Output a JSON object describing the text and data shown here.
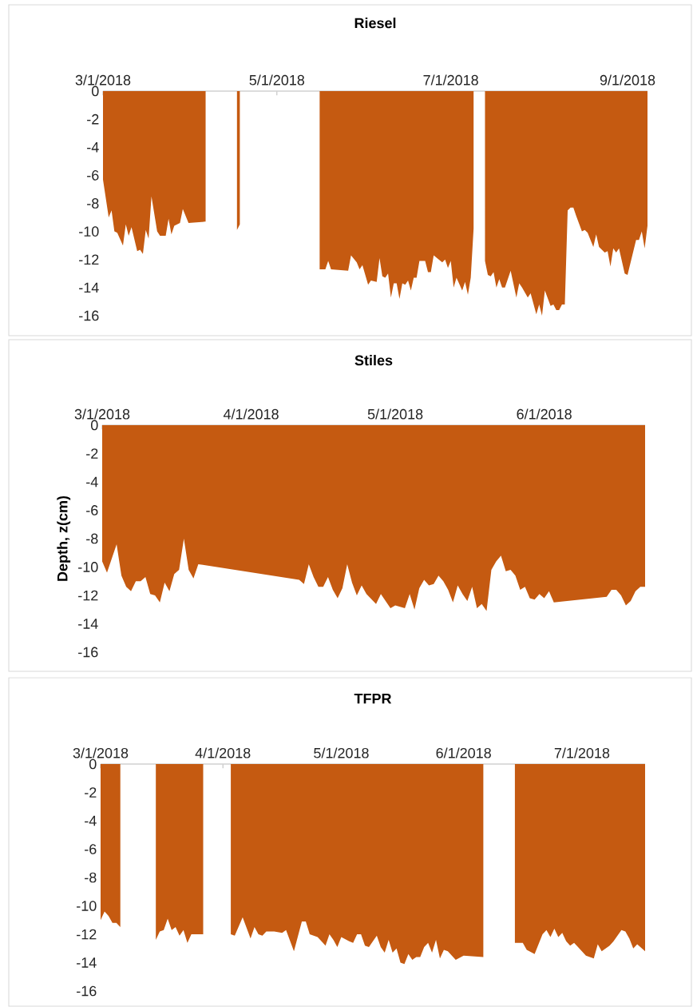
{
  "chart_data": [
    {
      "type": "area",
      "title": "Riesel",
      "color": "#c55a11",
      "x": [
        "2018-03-01",
        "2018-03-03",
        "2018-03-04",
        "2018-03-05",
        "2018-03-06",
        "2018-03-08",
        "2018-03-09",
        "2018-03-10",
        "2018-03-11",
        "2018-03-13",
        "2018-03-14",
        "2018-03-15",
        "2018-03-16",
        "2018-03-17",
        "2018-03-18",
        "2018-03-20",
        "2018-03-21",
        "2018-03-23",
        "2018-03-24",
        "2018-03-25",
        "2018-03-26",
        "2018-03-28",
        "2018-03-29",
        "2018-03-31",
        "2018-04-06",
        "2018-04-12",
        "2018-04-17",
        "2018-04-18",
        "2018-05-01",
        "2018-05-16",
        "2018-05-18",
        "2018-05-19",
        "2018-05-20",
        "2018-05-26",
        "2018-05-27",
        "2018-05-29",
        "2018-05-30",
        "2018-05-31",
        "2018-06-02",
        "2018-06-03",
        "2018-06-05",
        "2018-06-06",
        "2018-06-07",
        "2018-06-08",
        "2018-06-09",
        "2018-06-10",
        "2018-06-11",
        "2018-06-12",
        "2018-06-13",
        "2018-06-14",
        "2018-06-15",
        "2018-06-16",
        "2018-06-17",
        "2018-06-18",
        "2018-06-19",
        "2018-06-20",
        "2018-06-22",
        "2018-06-23",
        "2018-06-24",
        "2018-06-25",
        "2018-06-28",
        "2018-06-29",
        "2018-06-30",
        "2018-07-01",
        "2018-07-02",
        "2018-07-03",
        "2018-07-05",
        "2018-07-06",
        "2018-07-07",
        "2018-07-08",
        "2018-07-09",
        "2018-07-11",
        "2018-07-13",
        "2018-07-14",
        "2018-07-15",
        "2018-07-16",
        "2018-07-17",
        "2018-07-18",
        "2018-07-19",
        "2018-07-20",
        "2018-07-22",
        "2018-07-24",
        "2018-07-25",
        "2018-07-26",
        "2018-07-28",
        "2018-07-29",
        "2018-07-31",
        "2018-08-01",
        "2018-08-02",
        "2018-08-03",
        "2018-08-05",
        "2018-08-06",
        "2018-08-07",
        "2018-08-08",
        "2018-08-09",
        "2018-08-10",
        "2018-08-11",
        "2018-08-12",
        "2018-08-13",
        "2018-08-14",
        "2018-08-16",
        "2018-08-17",
        "2018-08-18",
        "2018-08-20",
        "2018-08-21",
        "2018-08-22",
        "2018-08-24",
        "2018-08-25",
        "2018-08-26",
        "2018-08-27",
        "2018-08-28",
        "2018-08-29",
        "2018-08-31",
        "2018-09-01",
        "2018-09-04",
        "2018-09-05",
        "2018-09-06",
        "2018-09-07",
        "2018-09-08"
      ],
      "values": [
        -6.3,
        -9.0,
        -8.5,
        -10.0,
        -10.1,
        -11.0,
        -9.5,
        -10.3,
        -9.7,
        -11.4,
        -11.3,
        -11.6,
        -9.9,
        -10.5,
        -7.5,
        -10.0,
        -10.3,
        -10.3,
        -9.1,
        -10.2,
        -9.6,
        -9.4,
        -8.4,
        -9.4,
        -9.3,
        null,
        -9.9,
        -9.5,
        null,
        -12.7,
        -12.7,
        -12.1,
        -12.7,
        -12.8,
        -11.7,
        -12.2,
        -12.7,
        -12.4,
        -13.8,
        -13.5,
        -13.6,
        -11.9,
        -13.2,
        -13.3,
        -13.0,
        -14.7,
        -13.7,
        -13.7,
        -14.8,
        -13.7,
        -13.8,
        -13.5,
        -14.2,
        -13.3,
        -13.3,
        -12.1,
        -12.1,
        -12.9,
        -12.9,
        -11.7,
        -12.2,
        -12.0,
        -12.6,
        -12.1,
        -14.0,
        -13.3,
        -14.2,
        -13.6,
        -14.5,
        -13.3,
        -9.8,
        null,
        -12.1,
        -13.1,
        -13.2,
        -12.9,
        -14.0,
        -13.4,
        -14.0,
        -14.0,
        -12.8,
        -14.7,
        -13.7,
        -14.0,
        -14.7,
        -14.4,
        -15.9,
        -15.2,
        -16.0,
        -14.2,
        -15.3,
        -15.2,
        -15.6,
        -15.6,
        -15.2,
        -15.2,
        -8.5,
        -8.3,
        -8.3,
        -8.9,
        -10.0,
        -9.9,
        -10.1,
        -11.1,
        -10.2,
        -11.1,
        -11.5,
        -11.4,
        -12.5,
        -11.2,
        -11.5,
        -11.2,
        -13.0,
        -13.1,
        -10.6,
        -10.6,
        -10.0,
        -11.2,
        -9.6
      ],
      "xlim": [
        "2018-03-01",
        "2018-09-08"
      ],
      "ylim": [
        -16,
        0
      ],
      "xticks": [
        {
          "value": "2018-03-01",
          "label": "3/1/2018"
        },
        {
          "value": "2018-05-01",
          "label": "5/1/2018"
        },
        {
          "value": "2018-07-01",
          "label": "7/1/2018"
        },
        {
          "value": "2018-09-01",
          "label": "9/1/2018"
        }
      ],
      "yticks": [
        0,
        -2,
        -4,
        -6,
        -8,
        -10,
        -12,
        -14,
        -16
      ]
    },
    {
      "type": "area",
      "title": "Stiles",
      "ylabel": "Depth, z(cm)",
      "color": "#c55a11",
      "x": [
        "2018-03-01",
        "2018-03-02",
        "2018-03-04",
        "2018-03-05",
        "2018-03-06",
        "2018-03-07",
        "2018-03-08",
        "2018-03-09",
        "2018-03-10",
        "2018-03-11",
        "2018-03-12",
        "2018-03-13",
        "2018-03-14",
        "2018-03-15",
        "2018-03-16",
        "2018-03-17",
        "2018-03-18",
        "2018-03-19",
        "2018-03-20",
        "2018-03-21",
        "2018-04-11",
        "2018-04-12",
        "2018-04-13",
        "2018-04-14",
        "2018-04-15",
        "2018-04-16",
        "2018-04-17",
        "2018-04-18",
        "2018-04-19",
        "2018-04-20",
        "2018-04-21",
        "2018-04-22",
        "2018-04-23",
        "2018-04-24",
        "2018-04-25",
        "2018-04-27",
        "2018-04-28",
        "2018-04-30",
        "2018-05-01",
        "2018-05-03",
        "2018-05-04",
        "2018-05-05",
        "2018-05-06",
        "2018-05-07",
        "2018-05-08",
        "2018-05-09",
        "2018-05-10",
        "2018-05-11",
        "2018-05-12",
        "2018-05-13",
        "2018-05-14",
        "2018-05-15",
        "2018-05-16",
        "2018-05-17",
        "2018-05-18",
        "2018-05-19",
        "2018-05-20",
        "2018-05-21",
        "2018-05-22",
        "2018-05-23",
        "2018-05-24",
        "2018-05-25",
        "2018-05-26",
        "2018-05-27",
        "2018-05-28",
        "2018-05-29",
        "2018-05-30",
        "2018-05-31",
        "2018-06-01",
        "2018-06-02",
        "2018-06-03",
        "2018-06-14",
        "2018-06-15",
        "2018-06-16",
        "2018-06-17",
        "2018-06-18",
        "2018-06-19",
        "2018-06-20",
        "2018-06-21",
        "2018-06-22"
      ],
      "values": [
        -9.6,
        -10.4,
        -8.4,
        -10.6,
        -11.4,
        -11.7,
        -11.0,
        -11.0,
        -10.7,
        -11.9,
        -12.0,
        -12.5,
        -11.1,
        -11.7,
        -10.5,
        -10.2,
        -8.0,
        -10.2,
        -10.8,
        -9.8,
        -10.9,
        -11.2,
        -9.8,
        -10.7,
        -11.4,
        -11.4,
        -10.7,
        -11.6,
        -12.2,
        -11.5,
        -9.8,
        -11.1,
        -12.0,
        -11.3,
        -11.9,
        -12.6,
        -11.9,
        -12.9,
        -12.7,
        -12.9,
        -11.9,
        -13.0,
        -11.5,
        -10.9,
        -11.3,
        -11.2,
        -10.6,
        -11.0,
        -11.6,
        -12.5,
        -11.3,
        -11.9,
        -12.4,
        -11.4,
        -12.9,
        -12.6,
        -13.1,
        -10.2,
        -9.6,
        -9.2,
        -10.3,
        -10.2,
        -10.6,
        -11.6,
        -11.4,
        -12.2,
        -12.3,
        -11.9,
        -12.2,
        -11.7,
        -12.5,
        -12.1,
        -11.6,
        -11.6,
        -12.0,
        -12.7,
        -12.4,
        -11.7,
        -11.4,
        -11.4
      ],
      "xlim": [
        "2018-03-01",
        "2018-06-22"
      ],
      "ylim": [
        -16,
        0
      ],
      "xticks": [
        {
          "value": "2018-03-01",
          "label": "3/1/2018"
        },
        {
          "value": "2018-04-01",
          "label": "4/1/2018"
        },
        {
          "value": "2018-05-01",
          "label": "5/1/2018"
        },
        {
          "value": "2018-06-01",
          "label": "6/1/2018"
        }
      ],
      "yticks": [
        0,
        -2,
        -4,
        -6,
        -8,
        -10,
        -12,
        -14,
        -16
      ]
    },
    {
      "type": "area",
      "title": "TFPR",
      "color": "#c55a11",
      "x": [
        "2018-03-01",
        "2018-03-02",
        "2018-03-03",
        "2018-03-04",
        "2018-03-05",
        "2018-03-06",
        "2018-03-10",
        "2018-03-15",
        "2018-03-16",
        "2018-03-17",
        "2018-03-18",
        "2018-03-19",
        "2018-03-20",
        "2018-03-21",
        "2018-03-22",
        "2018-03-23",
        "2018-03-24",
        "2018-03-27",
        "2018-03-30",
        "2018-04-03",
        "2018-04-04",
        "2018-04-06",
        "2018-04-08",
        "2018-04-09",
        "2018-04-10",
        "2018-04-11",
        "2018-04-12",
        "2018-04-14",
        "2018-04-16",
        "2018-04-17",
        "2018-04-19",
        "2018-04-21",
        "2018-04-22",
        "2018-04-23",
        "2018-04-24",
        "2018-04-25",
        "2018-04-27",
        "2018-04-28",
        "2018-04-29",
        "2018-04-30",
        "2018-05-01",
        "2018-05-03",
        "2018-05-04",
        "2018-05-05",
        "2018-05-06",
        "2018-05-07",
        "2018-05-08",
        "2018-05-10",
        "2018-05-11",
        "2018-05-12",
        "2018-05-13",
        "2018-05-14",
        "2018-05-15",
        "2018-05-16",
        "2018-05-17",
        "2018-05-18",
        "2018-05-19",
        "2018-05-20",
        "2018-05-21",
        "2018-05-22",
        "2018-05-23",
        "2018-05-24",
        "2018-05-25",
        "2018-05-26",
        "2018-05-27",
        "2018-05-28",
        "2018-05-30",
        "2018-06-01",
        "2018-06-06",
        "2018-06-10",
        "2018-06-14",
        "2018-06-16",
        "2018-06-17",
        "2018-06-19",
        "2018-06-21",
        "2018-06-22",
        "2018-06-23",
        "2018-06-24",
        "2018-06-25",
        "2018-06-26",
        "2018-06-27",
        "2018-06-28",
        "2018-06-29",
        "2018-06-30",
        "2018-07-02",
        "2018-07-04",
        "2018-07-05",
        "2018-07-06",
        "2018-07-08",
        "2018-07-09",
        "2018-07-11",
        "2018-07-12",
        "2018-07-13",
        "2018-07-14",
        "2018-07-15",
        "2018-07-17"
      ],
      "values": [
        -11.0,
        -10.4,
        -10.7,
        -11.2,
        -11.2,
        -11.5,
        null,
        -12.4,
        -11.8,
        -11.7,
        -10.9,
        -11.7,
        -11.5,
        -12.1,
        -11.7,
        -12.6,
        -12.0,
        -12.0,
        null,
        -12.0,
        -12.1,
        -10.8,
        -12.3,
        -11.5,
        -12.0,
        -12.1,
        -11.8,
        -11.8,
        -11.9,
        -11.7,
        -13.2,
        -11.1,
        -11.1,
        -12.0,
        -12.1,
        -12.2,
        -12.8,
        -12.0,
        -12.4,
        -12.9,
        -12.2,
        -12.5,
        -12.6,
        -12.0,
        -12.0,
        -12.8,
        -12.9,
        -12.1,
        -12.9,
        -13.3,
        -12.4,
        -13.3,
        -13.0,
        -14.0,
        -14.1,
        -13.4,
        -13.8,
        -13.6,
        -13.6,
        -12.9,
        -12.6,
        -13.3,
        -12.4,
        -13.7,
        -13.1,
        -13.2,
        -13.8,
        -13.5,
        -13.6,
        null,
        -12.6,
        -12.6,
        -13.1,
        -13.4,
        -12.0,
        -11.7,
        -12.2,
        -11.6,
        -12.2,
        -11.9,
        -12.5,
        -12.8,
        -12.6,
        -12.9,
        -13.5,
        -13.7,
        -12.7,
        -13.2,
        -12.8,
        -12.5,
        -11.7,
        -11.8,
        -12.3,
        -13.0,
        -12.7,
        -13.2
      ],
      "xlim": [
        "2018-03-01",
        "2018-07-17"
      ],
      "ylim": [
        -16,
        0
      ],
      "xticks": [
        {
          "value": "2018-03-01",
          "label": "3/1/2018"
        },
        {
          "value": "2018-04-01",
          "label": "4/1/2018"
        },
        {
          "value": "2018-05-01",
          "label": "5/1/2018"
        },
        {
          "value": "2018-06-01",
          "label": "6/1/2018"
        },
        {
          "value": "2018-07-01",
          "label": "7/1/2018"
        }
      ],
      "yticks": [
        0,
        -2,
        -4,
        -6,
        -8,
        -10,
        -12,
        -14,
        -16
      ]
    }
  ]
}
